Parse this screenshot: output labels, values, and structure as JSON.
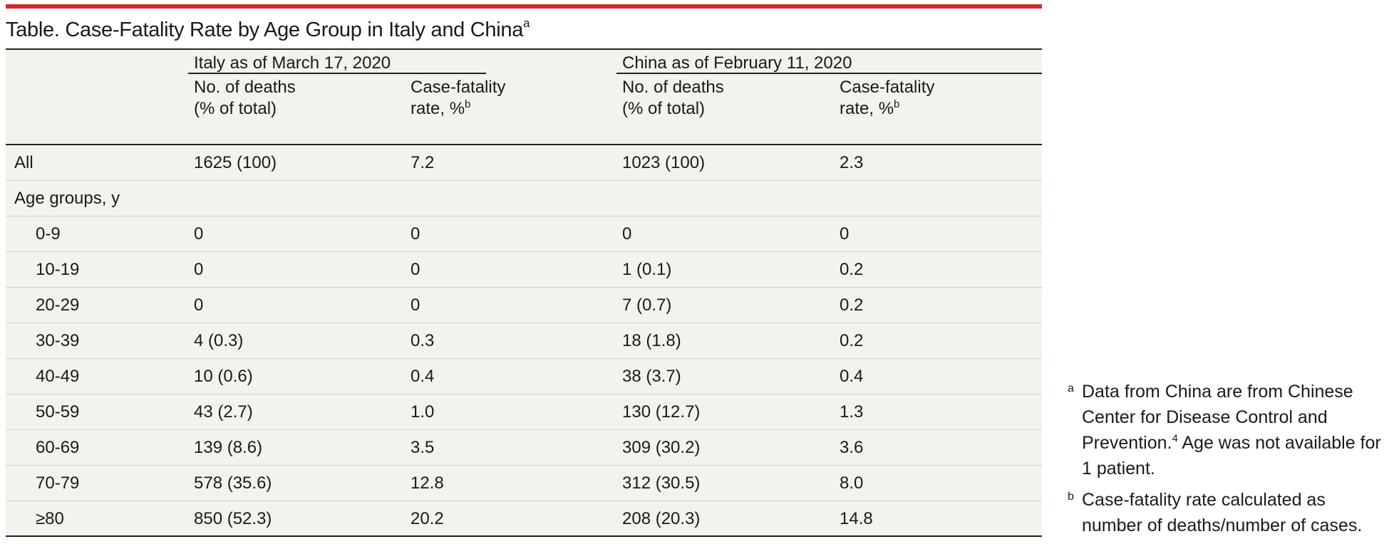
{
  "title": {
    "text": "Table. Case-Fatality Rate by Age Group in Italy and China",
    "sup": "a"
  },
  "groups": {
    "italy": "Italy as of March 17, 2020",
    "china": "China as of February 11, 2020"
  },
  "subheaders": {
    "deaths_line1": "No. of deaths",
    "deaths_line2": "(% of total)",
    "cfr_line1": "Case-fatality",
    "cfr_line2": "rate, %",
    "cfr_sup": "b"
  },
  "rows": [
    {
      "label": "All",
      "italy_deaths": "1625 (100)",
      "italy_cfr": "7.2",
      "china_deaths": "1023 (100)",
      "china_cfr": "2.3"
    },
    {
      "label": "Age groups, y",
      "italy_deaths": "",
      "italy_cfr": "",
      "china_deaths": "",
      "china_cfr": ""
    },
    {
      "label": "0-9",
      "italy_deaths": "0",
      "italy_cfr": "0",
      "china_deaths": "0",
      "china_cfr": "0"
    },
    {
      "label": "10-19",
      "italy_deaths": "0",
      "italy_cfr": "0",
      "china_deaths": "1 (0.1)",
      "china_cfr": "0.2"
    },
    {
      "label": "20-29",
      "italy_deaths": "0",
      "italy_cfr": "0",
      "china_deaths": "7 (0.7)",
      "china_cfr": "0.2"
    },
    {
      "label": "30-39",
      "italy_deaths": "4 (0.3)",
      "italy_cfr": "0.3",
      "china_deaths": "18 (1.8)",
      "china_cfr": "0.2"
    },
    {
      "label": "40-49",
      "italy_deaths": "10 (0.6)",
      "italy_cfr": "0.4",
      "china_deaths": "38 (3.7)",
      "china_cfr": "0.4"
    },
    {
      "label": "50-59",
      "italy_deaths": "43 (2.7)",
      "italy_cfr": "1.0",
      "china_deaths": "130 (12.7)",
      "china_cfr": "1.3"
    },
    {
      "label": "60-69",
      "italy_deaths": "139 (8.6)",
      "italy_cfr": "3.5",
      "china_deaths": "309 (30.2)",
      "china_cfr": "3.6"
    },
    {
      "label": "70-79",
      "italy_deaths": "578 (35.6)",
      "italy_cfr": "12.8",
      "china_deaths": "312 (30.5)",
      "china_cfr": "8.0"
    },
    {
      "label": "≥80",
      "italy_deaths": "850 (52.3)",
      "italy_cfr": "20.2",
      "china_deaths": "208 (20.3)",
      "china_cfr": "14.8"
    }
  ],
  "footnotes": [
    {
      "mark": "a",
      "text_before": "Data from China are from Chinese Center for Disease Control and Prevention.",
      "ref": "4",
      "text_after": " Age was not available for 1 patient."
    },
    {
      "mark": "b",
      "text_before": "Case-fatality rate calculated as number of deaths/number of cases.",
      "ref": "",
      "text_after": ""
    }
  ],
  "colors": {
    "accent_bar": "#d9262c",
    "table_background": "#f3f2ec",
    "row_divider": "#d4d2c6"
  }
}
